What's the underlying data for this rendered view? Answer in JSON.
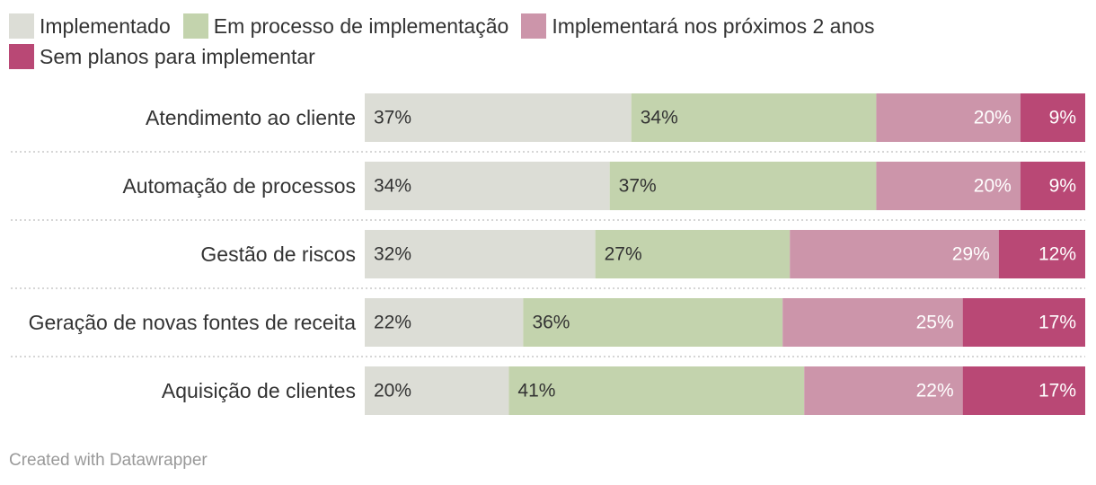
{
  "chart_data": {
    "type": "bar",
    "orientation": "horizontal",
    "stacked": true,
    "legend_position": "top",
    "categories": [
      "Atendimento ao cliente",
      "Automação de processos",
      "Gestão de riscos",
      "Geração de novas fontes de receita",
      "Aquisição de clientes"
    ],
    "series": [
      {
        "name": "Implementado",
        "color": "#dcddd6",
        "label_color": "#333333",
        "label_align": "left",
        "values": [
          37,
          34,
          32,
          22,
          20
        ],
        "labels": [
          "37%",
          "34%",
          "32%",
          "22%",
          "20%"
        ]
      },
      {
        "name": "Em processo de implementação",
        "color": "#c3d3ad",
        "label_color": "#333333",
        "label_align": "left",
        "values": [
          34,
          37,
          27,
          36,
          41
        ],
        "labels": [
          "34%",
          "37%",
          "27%",
          "36%",
          "41%"
        ]
      },
      {
        "name": "Implementará nos próximos 2 anos",
        "color": "#cc95aa",
        "label_color": "#ffffff",
        "label_align": "right",
        "values": [
          20,
          20,
          29,
          25,
          22
        ],
        "labels": [
          "20%",
          "20%",
          "29%",
          "25%",
          "22%"
        ]
      },
      {
        "name": "Sem planos para implementar",
        "color": "#b94875",
        "label_color": "#ffffff",
        "label_align": "right",
        "values": [
          9,
          9,
          12,
          17,
          17
        ],
        "labels": [
          "9%",
          "9%",
          "12%",
          "17%",
          "17%"
        ]
      }
    ],
    "xlim": [
      0,
      100
    ]
  },
  "footer": {
    "credit": "Created with Datawrapper"
  }
}
